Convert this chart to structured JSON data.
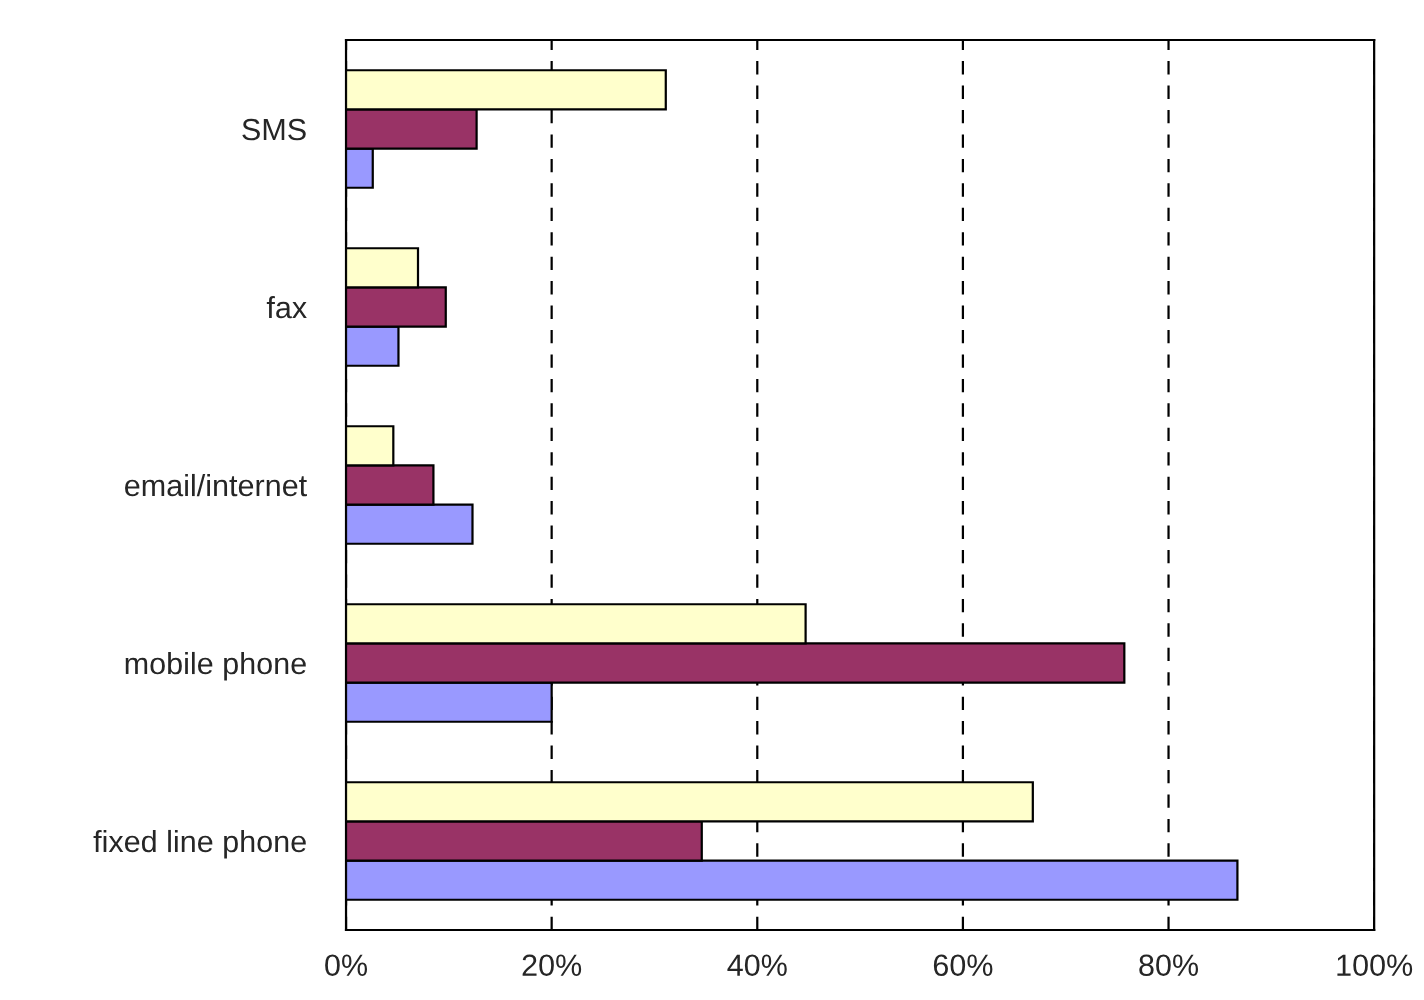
{
  "chart_data": {
    "type": "bar",
    "orientation": "horizontal",
    "categories": [
      "SMS",
      "fax",
      "email/internet",
      "mobile phone",
      "fixed line phone"
    ],
    "series": [
      {
        "color": "#9999ff",
        "values": [
          2.6,
          5.1,
          12.3,
          20.0,
          86.7
        ]
      },
      {
        "color": "#993366",
        "values": [
          12.7,
          9.7,
          8.5,
          75.7,
          34.6
        ]
      },
      {
        "color": "#ffffcc",
        "values": [
          31.1,
          7.0,
          4.6,
          44.7,
          66.8
        ]
      }
    ],
    "xlim": [
      0,
      100
    ],
    "xticks": [
      {
        "value": 0,
        "label": "0%"
      },
      {
        "value": 20,
        "label": "20%"
      },
      {
        "value": 40,
        "label": "40%"
      },
      {
        "value": 60,
        "label": "60%"
      },
      {
        "value": 80,
        "label": "80%"
      },
      {
        "value": 100,
        "label": "100%"
      }
    ],
    "grid": "x",
    "legend": false
  }
}
